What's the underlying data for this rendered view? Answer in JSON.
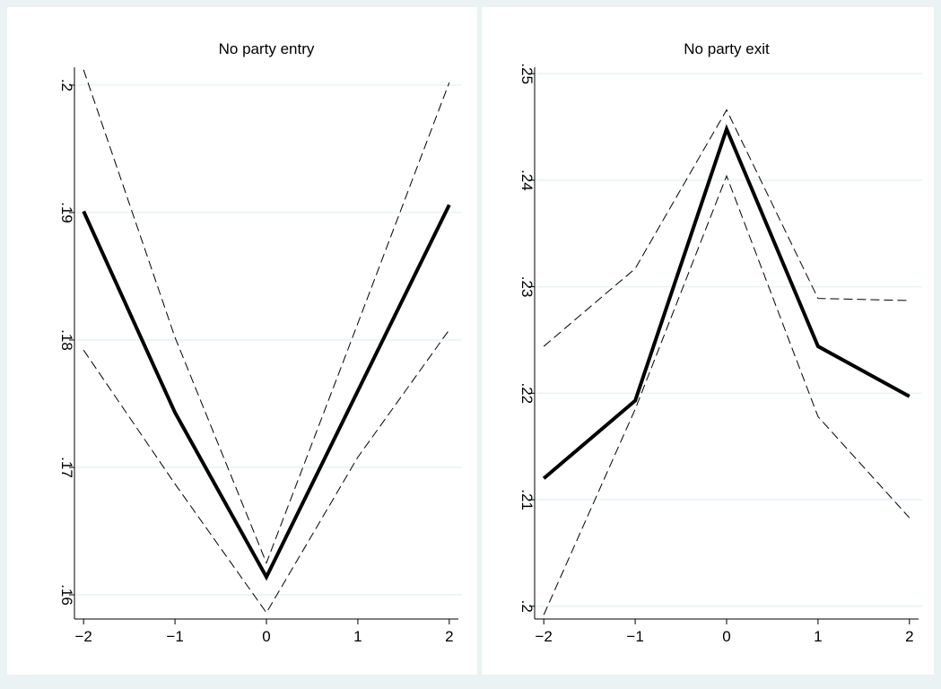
{
  "chart_data": [
    {
      "type": "line",
      "title": "No party entry",
      "x": [
        -2,
        -1,
        0,
        1,
        2
      ],
      "series": [
        {
          "color": "#000000",
          "style": "solid",
          "values": [
            0.1901,
            0.1743,
            0.1614,
            0.176,
            0.1906
          ]
        },
        {
          "color": "#000000",
          "style": "dashed",
          "values": [
            0.2012,
            0.1802,
            0.1625,
            0.1813,
            0.2002
          ]
        },
        {
          "color": "#000000",
          "style": "dashed",
          "values": [
            0.1792,
            0.1687,
            0.1586,
            0.1708,
            0.1808
          ]
        }
      ],
      "xlim": [
        -2.1,
        2.1
      ],
      "xticks": [
        {
          "value": -2,
          "label": "−2"
        },
        {
          "value": -1,
          "label": "−1"
        },
        0,
        1,
        2
      ],
      "ylim": [
        0.1581,
        0.2014
      ],
      "yticks": [
        {
          "value": 0.16,
          "label": ".16"
        },
        {
          "value": 0.17,
          "label": ".17"
        },
        {
          "value": 0.18,
          "label": ".18"
        },
        {
          "value": 0.19,
          "label": ".19"
        },
        {
          "value": 0.2,
          "label": ".2"
        }
      ],
      "grid": true
    },
    {
      "type": "line",
      "title": "No party exit",
      "x": [
        -2,
        -1,
        0,
        1,
        2
      ],
      "series": [
        {
          "color": "#000000",
          "style": "solid",
          "values": [
            0.212,
            0.2193,
            0.2448,
            0.2244,
            0.2197
          ]
        },
        {
          "color": "#000000",
          "style": "dashed",
          "values": [
            0.2244,
            0.2317,
            0.2466,
            0.2289,
            0.2287
          ]
        },
        {
          "color": "#000000",
          "style": "dashed",
          "values": [
            0.1992,
            0.2185,
            0.2404,
            0.2178,
            0.2083
          ]
        }
      ],
      "xlim": [
        -2.1,
        2.1
      ],
      "xticks": [
        {
          "value": -2,
          "label": "−2"
        },
        {
          "value": -1,
          "label": "−1"
        },
        0,
        1,
        2
      ],
      "ylim": [
        0.1988,
        0.2506
      ],
      "yticks": [
        {
          "value": 0.2,
          "label": ".2"
        },
        {
          "value": 0.21,
          "label": ".21"
        },
        {
          "value": 0.22,
          "label": ".22"
        },
        {
          "value": 0.23,
          "label": ".23"
        },
        {
          "value": 0.24,
          "label": ".24"
        },
        {
          "value": 0.25,
          "label": ".25"
        }
      ],
      "grid": true
    }
  ]
}
